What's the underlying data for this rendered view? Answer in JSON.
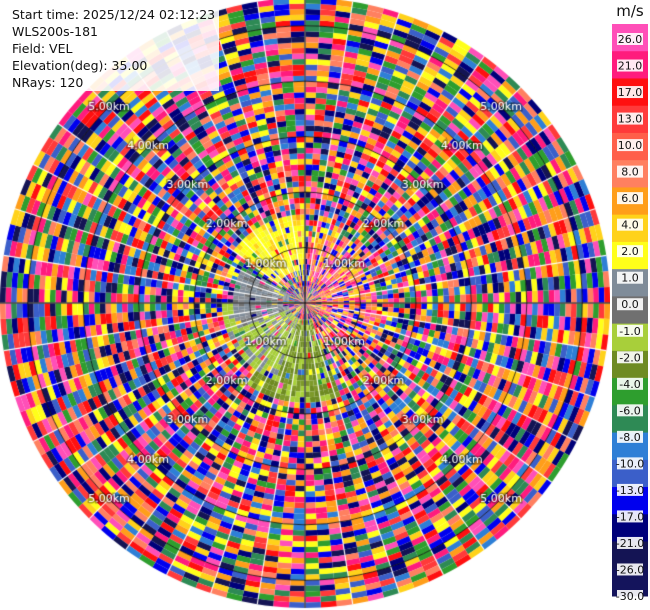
{
  "chart_data": {
    "type": "heatmap",
    "subtype": "ppi-polar",
    "info": {
      "start_time": "Start time: 2025/12/24 02:12:23",
      "instrument": "WLS200s-181",
      "field": "Field: VEL",
      "elevation": "Elevation(deg): 35.00",
      "nrays": "NRays: 120"
    },
    "n_rays": 120,
    "n_gates": 55,
    "max_range_km": 5.5,
    "range_rings_km": [
      1.0,
      2.0,
      3.0,
      4.0,
      5.0
    ],
    "range_labels": [
      "1.00km",
      "2.00km",
      "3.00km",
      "4.00km",
      "5.00km"
    ],
    "colorbar": {
      "unit": "m/s",
      "tick_labels": [
        "26.0",
        "21.0",
        "17.0",
        "13.0",
        "10.0",
        "8.0",
        "6.0",
        "4.0",
        "2.0",
        "1.0",
        "0.0",
        "-1.0",
        "-2.0",
        "-4.0",
        "-6.0",
        "-8.0",
        "-10.0",
        "-13.0",
        "-17.0",
        "-21.0",
        "-26.0",
        "-30.0"
      ],
      "colors": [
        "#ff4fb8",
        "#ff1b7d",
        "#ff1010",
        "#ff3a3a",
        "#ff5f4a",
        "#ff8060",
        "#ff9e1a",
        "#ffd21a",
        "#ffff1a",
        "#7f8c99",
        "#707070",
        "#a8cf3a",
        "#6e8b22",
        "#2e9e2e",
        "#2e8a55",
        "#2e7fd6",
        "#3b5fc9",
        "#0000ee",
        "#00007a",
        "#141454",
        "#14145c"
      ]
    },
    "velocity_regions": [
      {
        "az_from": 305,
        "az_to": 360,
        "r_from": 0.6,
        "r_to": 1.6,
        "class": "yellow"
      },
      {
        "az_from": 250,
        "az_to": 300,
        "r_from": 0.3,
        "r_to": 1.3,
        "class": "gray"
      },
      {
        "az_from": 200,
        "az_to": 270,
        "r_from": 0.3,
        "r_to": 1.5,
        "class": "light-green"
      },
      {
        "az_from": 160,
        "az_to": 215,
        "r_from": 0.3,
        "r_to": 1.8,
        "class": "olive"
      },
      {
        "az_from": 10,
        "az_to": 120,
        "r_from": 0.3,
        "r_to": 1.3,
        "class": "orange-mix"
      }
    ]
  }
}
